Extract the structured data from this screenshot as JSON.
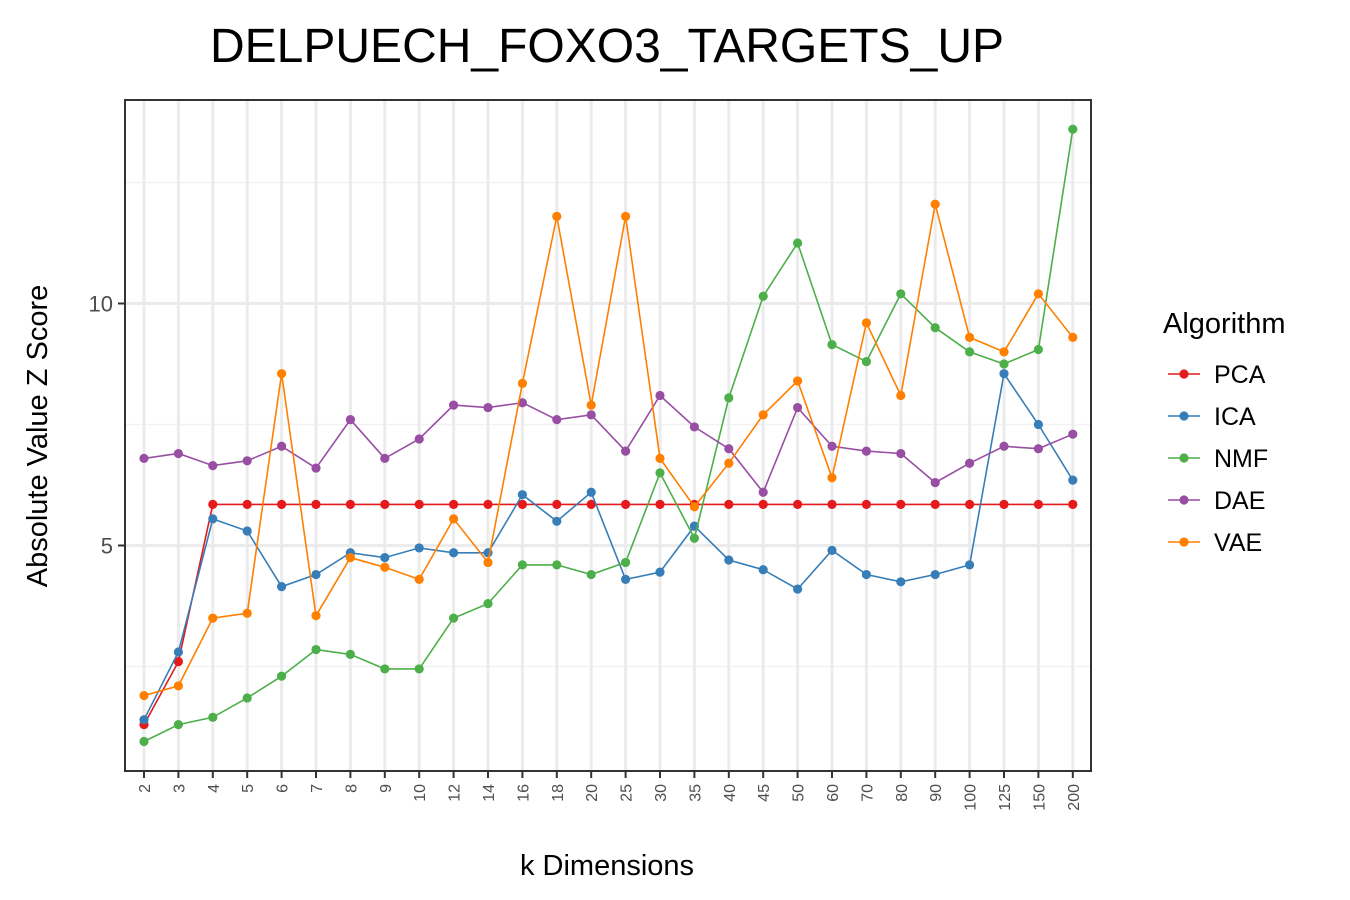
{
  "chart_data": {
    "type": "line",
    "title": "DELPUECH_FOXO3_TARGETS_UP",
    "xlabel": "k Dimensions",
    "ylabel": "Absolute Value Z Score",
    "categories": [
      "2",
      "3",
      "4",
      "5",
      "6",
      "7",
      "8",
      "9",
      "10",
      "12",
      "14",
      "16",
      "18",
      "20",
      "25",
      "30",
      "35",
      "40",
      "45",
      "50",
      "60",
      "70",
      "80",
      "90",
      "100",
      "125",
      "150",
      "200"
    ],
    "ylim": [
      0.5,
      14.0
    ],
    "yticks": [
      5,
      10
    ],
    "grid": true,
    "legend": {
      "title": "Algorithm",
      "position": "right"
    },
    "series": [
      {
        "name": "PCA",
        "color": "#e41a1c",
        "values": [
          1.3,
          2.6,
          5.85,
          5.85,
          5.85,
          5.85,
          5.85,
          5.85,
          5.85,
          5.85,
          5.85,
          5.85,
          5.85,
          5.85,
          5.85,
          5.85,
          5.85,
          5.85,
          5.85,
          5.85,
          5.85,
          5.85,
          5.85,
          5.85,
          5.85,
          5.85,
          5.85,
          5.85
        ]
      },
      {
        "name": "ICA",
        "color": "#377eb8",
        "values": [
          1.4,
          2.8,
          5.55,
          5.3,
          4.15,
          4.4,
          4.85,
          4.75,
          4.95,
          4.85,
          4.85,
          6.05,
          5.5,
          6.1,
          4.3,
          4.45,
          5.4,
          4.7,
          4.5,
          4.1,
          4.9,
          4.4,
          4.25,
          4.4,
          4.6,
          8.55,
          7.5,
          6.35
        ]
      },
      {
        "name": "NMF",
        "color": "#4daf4a",
        "values": [
          0.95,
          1.3,
          1.45,
          1.85,
          2.3,
          2.85,
          2.75,
          2.45,
          2.45,
          3.5,
          3.8,
          4.6,
          4.6,
          4.4,
          4.65,
          6.5,
          5.15,
          8.05,
          10.15,
          11.25,
          9.15,
          8.8,
          10.2,
          9.5,
          9.0,
          8.75,
          9.05,
          13.6
        ]
      },
      {
        "name": "DAE",
        "color": "#984ea3",
        "values": [
          6.8,
          6.9,
          6.65,
          6.75,
          7.05,
          6.6,
          7.6,
          6.8,
          7.2,
          7.9,
          7.85,
          7.95,
          7.6,
          7.7,
          6.95,
          8.1,
          7.45,
          7.0,
          6.1,
          7.85,
          7.05,
          6.95,
          6.9,
          6.3,
          6.7,
          7.05,
          7.0,
          7.3
        ]
      },
      {
        "name": "VAE",
        "color": "#ff7f00",
        "values": [
          1.9,
          2.1,
          3.5,
          3.6,
          8.55,
          3.55,
          4.75,
          4.55,
          4.3,
          5.55,
          4.65,
          8.35,
          11.8,
          7.9,
          11.8,
          6.8,
          5.8,
          6.7,
          7.7,
          8.4,
          6.4,
          9.6,
          8.1,
          12.05,
          9.3,
          9.0,
          10.2,
          9.3
        ]
      }
    ]
  }
}
